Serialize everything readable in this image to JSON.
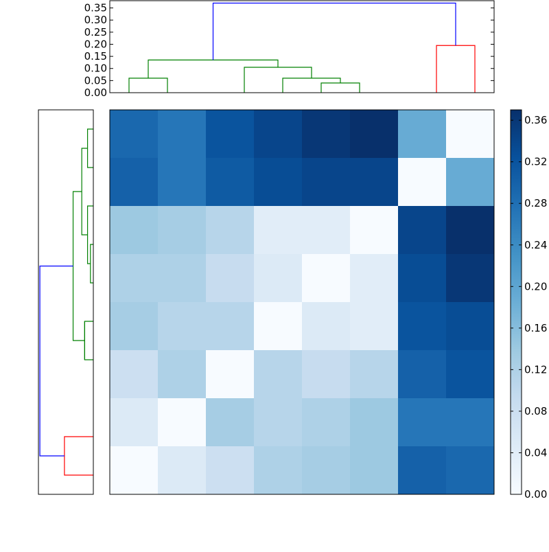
{
  "chart_data": {
    "type": "heatmap",
    "title": "",
    "xlabel": "",
    "ylabel": "",
    "grid": false,
    "colormap": "Blues",
    "color_range": [
      0,
      0.37
    ],
    "colorbar": {
      "ticks": [
        0.0,
        0.04,
        0.08,
        0.12,
        0.16,
        0.2,
        0.24,
        0.28,
        0.32,
        0.36
      ],
      "tick_labels": [
        "0.00",
        "0.04",
        "0.08",
        "0.12",
        "0.16",
        "0.20",
        "0.24",
        "0.28",
        "0.32",
        "0.36"
      ],
      "placement": "right"
    },
    "matrix": [
      [
        0.29,
        0.27,
        0.32,
        0.34,
        0.36,
        0.37,
        0.19,
        0.0
      ],
      [
        0.3,
        0.27,
        0.31,
        0.33,
        0.34,
        0.34,
        0.0,
        0.19
      ],
      [
        0.14,
        0.13,
        0.11,
        0.04,
        0.04,
        0.0,
        0.34,
        0.37
      ],
      [
        0.12,
        0.12,
        0.09,
        0.05,
        0.0,
        0.04,
        0.33,
        0.36
      ],
      [
        0.13,
        0.11,
        0.11,
        0.0,
        0.05,
        0.04,
        0.32,
        0.33
      ],
      [
        0.08,
        0.12,
        0.0,
        0.11,
        0.09,
        0.11,
        0.3,
        0.32
      ],
      [
        0.05,
        0.0,
        0.13,
        0.11,
        0.12,
        0.14,
        0.27,
        0.27
      ],
      [
        0.0,
        0.05,
        0.08,
        0.12,
        0.13,
        0.14,
        0.3,
        0.29
      ]
    ],
    "top_dendrogram": {
      "ylim": [
        0,
        0.38
      ],
      "ticks": [
        0.0,
        0.05,
        0.1,
        0.15,
        0.2,
        0.25,
        0.3,
        0.35
      ],
      "tick_labels": [
        "0.00",
        "0.05",
        "0.10",
        "0.15",
        "0.20",
        "0.25",
        "0.30",
        "0.35"
      ],
      "links": [
        {
          "x": [
            0.5,
            1.5
          ],
          "bottoms": [
            0,
            0
          ],
          "height": 0.06,
          "color": "#008000"
        },
        {
          "x": [
            5.5,
            6.5
          ],
          "bottoms": [
            0,
            0
          ],
          "height": 0.04,
          "color": "#008000"
        },
        {
          "x": [
            4.5,
            6.0
          ],
          "bottoms": [
            0,
            0.04
          ],
          "height": 0.06,
          "color": "#008000"
        },
        {
          "x": [
            3.5,
            5.25
          ],
          "bottoms": [
            0,
            0.06
          ],
          "height": 0.105,
          "color": "#008000"
        },
        {
          "x": [
            1.0,
            4.375
          ],
          "bottoms": [
            0.06,
            0.105
          ],
          "height": 0.135,
          "color": "#008000"
        },
        {
          "x": [
            8.5,
            9.5
          ],
          "bottoms": [
            0,
            0
          ],
          "height": 0.195,
          "color": "#ff0000"
        },
        {
          "x": [
            2.6875,
            9.0
          ],
          "bottoms": [
            0.135,
            0.195
          ],
          "height": 0.37,
          "color": "#0000ff"
        }
      ]
    },
    "left_dendrogram": {
      "xlim": [
        0.38,
        0
      ],
      "links": [
        {
          "y": [
            0.5,
            1.5
          ],
          "bottoms": [
            0,
            0
          ],
          "height": 0.04,
          "color": "#008000"
        },
        {
          "y": [
            3.5,
            4.5
          ],
          "bottoms": [
            0,
            0
          ],
          "height": 0.02,
          "color": "#008000"
        },
        {
          "y": [
            2.5,
            4.0
          ],
          "bottoms": [
            0,
            0.02
          ],
          "height": 0.04,
          "color": "#008000"
        },
        {
          "y": [
            1.0,
            3.25
          ],
          "bottoms": [
            0.04,
            0.04
          ],
          "height": 0.08,
          "color": "#008000"
        },
        {
          "y": [
            5.5,
            6.5
          ],
          "bottoms": [
            0,
            0
          ],
          "height": 0.06,
          "color": "#008000"
        },
        {
          "y": [
            5.5,
            6.5
          ],
          "bottoms": [
            0.06,
            0.06
          ],
          "height": 0.06,
          "color": "#008000"
        },
        {
          "y": [
            2.125,
            6.0
          ],
          "bottoms": [
            0.08,
            0.06
          ],
          "height": 0.14,
          "color": "#008000"
        },
        {
          "y": [
            8.5,
            9.5
          ],
          "bottoms": [
            0,
            0
          ],
          "height": 0.2,
          "color": "#ff0000"
        },
        {
          "y": [
            4.0625,
            9.0
          ],
          "bottoms": [
            0.14,
            0.2
          ],
          "height": 0.37,
          "color": "#0000ff"
        }
      ]
    }
  }
}
